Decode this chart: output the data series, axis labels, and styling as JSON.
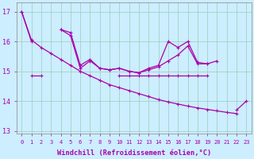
{
  "xlabel": "Windchill (Refroidissement éolien,°C)",
  "background_color": "#cceeff",
  "grid_color": "#99ccbb",
  "line_color": "#aa00aa",
  "x_values": [
    0,
    1,
    2,
    3,
    4,
    5,
    6,
    7,
    8,
    9,
    10,
    11,
    12,
    13,
    14,
    15,
    16,
    17,
    18,
    19,
    20,
    21,
    22,
    23
  ],
  "s1": [
    17.0,
    16.0,
    null,
    null,
    16.4,
    16.3,
    15.2,
    15.4,
    15.1,
    15.05,
    15.1,
    15.0,
    14.95,
    15.1,
    15.2,
    16.0,
    15.8,
    16.0,
    15.3,
    15.25,
    15.35,
    null,
    13.7,
    14.0
  ],
  "s2": [
    null,
    null,
    null,
    null,
    16.4,
    16.2,
    15.1,
    15.35,
    15.1,
    15.05,
    15.1,
    15.0,
    14.95,
    15.05,
    15.15,
    15.35,
    15.55,
    15.85,
    15.25,
    15.25,
    null,
    null,
    null,
    null
  ],
  "s3": [
    null,
    14.85,
    14.85,
    null,
    null,
    null,
    null,
    null,
    null,
    null,
    14.85,
    14.85,
    14.85,
    14.85,
    14.85,
    14.85,
    14.85,
    14.85,
    14.85,
    14.85,
    null,
    null,
    null,
    null
  ],
  "diag": [
    17.0,
    16.05,
    15.8,
    15.6,
    15.4,
    15.2,
    15.0,
    14.85,
    14.7,
    14.55,
    14.45,
    14.35,
    14.25,
    14.15,
    14.05,
    13.97,
    13.9,
    13.83,
    13.77,
    13.72,
    13.67,
    13.62,
    13.58,
    null
  ],
  "ylim": [
    12.9,
    17.3
  ],
  "yticks": [
    13,
    14,
    15,
    16,
    17
  ],
  "xlim": [
    -0.5,
    23.5
  ]
}
